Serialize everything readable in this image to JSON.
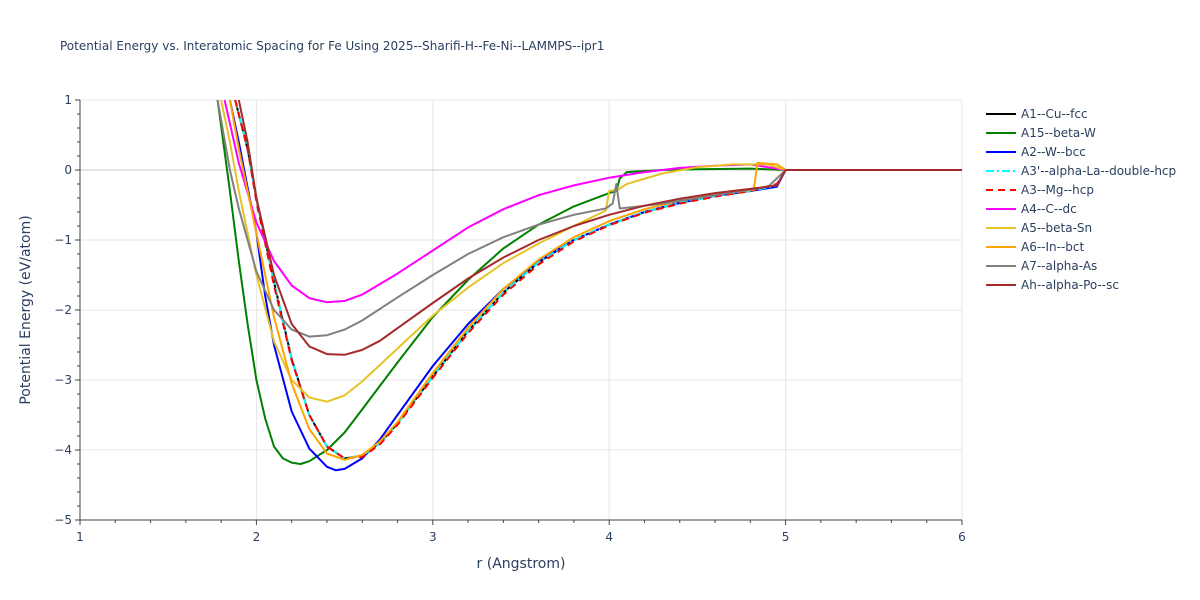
{
  "chart_data": {
    "type": "line",
    "title": "Potential Energy vs. Interatomic Spacing for Fe Using 2025--Sharifi-H--Fe-Ni--LAMMPS--ipr1",
    "xlabel": "r (Angstrom)",
    "ylabel": "Potential Energy (eV/atom)",
    "xlim": [
      1,
      6
    ],
    "ylim": [
      -5,
      1
    ],
    "xticks": [
      1,
      2,
      3,
      4,
      5,
      6
    ],
    "yticks": [
      -5,
      -4,
      -3,
      -2,
      -1,
      0,
      1
    ],
    "xtick_labels": [
      "1",
      "2",
      "3",
      "4",
      "5",
      "6"
    ],
    "ytick_labels": [
      "−5",
      "−4",
      "−3",
      "−2",
      "−1",
      "0",
      "1"
    ],
    "grid": true,
    "legend_position": "right",
    "series": [
      {
        "name": "A1--Cu--fcc",
        "color": "#000000",
        "dash": "solid",
        "x": [
          1.88,
          1.95,
          2.0,
          2.1,
          2.2,
          2.3,
          2.4,
          2.5,
          2.6,
          2.7,
          2.8,
          3.0,
          3.2,
          3.4,
          3.6,
          3.8,
          4.0,
          4.2,
          4.4,
          4.6,
          4.8,
          4.95,
          5.0,
          6.0
        ],
        "y": [
          1.0,
          0.3,
          -0.4,
          -1.6,
          -2.7,
          -3.5,
          -3.95,
          -4.12,
          -4.08,
          -3.9,
          -3.62,
          -2.95,
          -2.3,
          -1.75,
          -1.32,
          -1.0,
          -0.78,
          -0.6,
          -0.47,
          -0.37,
          -0.3,
          -0.22,
          0.0,
          0.0
        ]
      },
      {
        "name": "A15--beta-W",
        "color": "#008000",
        "dash": "solid",
        "x": [
          1.78,
          1.85,
          1.9,
          1.95,
          2.0,
          2.05,
          2.1,
          2.15,
          2.2,
          2.25,
          2.3,
          2.4,
          2.5,
          2.6,
          2.8,
          3.0,
          3.2,
          3.4,
          3.6,
          3.8,
          4.0,
          4.04,
          4.06,
          4.1,
          4.3,
          4.5,
          4.8,
          5.0,
          6.0
        ],
        "y": [
          1.0,
          -0.3,
          -1.3,
          -2.2,
          -3.0,
          -3.55,
          -3.95,
          -4.12,
          -4.18,
          -4.2,
          -4.16,
          -4.0,
          -3.75,
          -3.42,
          -2.75,
          -2.1,
          -1.57,
          -1.12,
          -0.78,
          -0.52,
          -0.33,
          -0.3,
          -0.12,
          -0.03,
          0.0,
          0.01,
          0.02,
          0.0,
          0.0
        ]
      },
      {
        "name": "A2--W--bcc",
        "color": "#0000ff",
        "dash": "solid",
        "x": [
          1.85,
          1.9,
          2.0,
          2.05,
          2.1,
          2.2,
          2.3,
          2.4,
          2.45,
          2.5,
          2.6,
          2.7,
          2.8,
          3.0,
          3.2,
          3.4,
          3.6,
          3.8,
          4.0,
          4.2,
          4.4,
          4.6,
          4.8,
          4.95,
          5.0,
          6.0
        ],
        "y": [
          1.0,
          0.4,
          -0.9,
          -1.8,
          -2.5,
          -3.45,
          -3.98,
          -4.24,
          -4.29,
          -4.27,
          -4.12,
          -3.85,
          -3.5,
          -2.8,
          -2.2,
          -1.7,
          -1.3,
          -1.0,
          -0.78,
          -0.6,
          -0.47,
          -0.37,
          -0.3,
          -0.24,
          0.0,
          0.0
        ]
      },
      {
        "name": "A3'--alpha-La--double-hcp",
        "color": "#00ffff",
        "dash": "dashdot",
        "x": [
          1.88,
          1.95,
          2.0,
          2.1,
          2.2,
          2.3,
          2.4,
          2.5,
          2.6,
          2.7,
          2.8,
          3.0,
          3.2,
          3.4,
          3.6,
          3.8,
          4.0,
          4.2,
          4.4,
          4.6,
          4.8,
          4.95,
          5.0,
          6.0
        ],
        "y": [
          1.0,
          0.3,
          -0.4,
          -1.6,
          -2.7,
          -3.5,
          -3.95,
          -4.12,
          -4.08,
          -3.9,
          -3.62,
          -2.95,
          -2.3,
          -1.75,
          -1.32,
          -1.0,
          -0.78,
          -0.6,
          -0.47,
          -0.37,
          -0.3,
          -0.22,
          0.0,
          0.0
        ]
      },
      {
        "name": "A3--Mg--hcp",
        "color": "#ff0000",
        "dash": "dash",
        "x": [
          1.88,
          1.95,
          2.0,
          2.1,
          2.2,
          2.3,
          2.4,
          2.5,
          2.6,
          2.7,
          2.8,
          3.0,
          3.2,
          3.4,
          3.6,
          3.8,
          4.0,
          4.2,
          4.4,
          4.6,
          4.8,
          4.95,
          5.0,
          6.0
        ],
        "y": [
          1.0,
          0.3,
          -0.45,
          -1.65,
          -2.72,
          -3.5,
          -3.95,
          -4.12,
          -4.1,
          -3.92,
          -3.64,
          -2.97,
          -2.33,
          -1.78,
          -1.35,
          -1.02,
          -0.79,
          -0.61,
          -0.48,
          -0.38,
          -0.3,
          -0.2,
          0.0,
          0.0
        ]
      },
      {
        "name": "A4--C--dc",
        "color": "#ff00ff",
        "dash": "solid",
        "x": [
          1.82,
          1.9,
          2.0,
          2.1,
          2.2,
          2.3,
          2.4,
          2.5,
          2.6,
          2.8,
          3.0,
          3.2,
          3.4,
          3.6,
          3.8,
          4.0,
          4.2,
          4.4,
          4.6,
          4.8,
          5.0,
          6.0
        ],
        "y": [
          1.0,
          0.1,
          -0.75,
          -1.3,
          -1.65,
          -1.83,
          -1.89,
          -1.87,
          -1.78,
          -1.48,
          -1.15,
          -0.82,
          -0.56,
          -0.36,
          -0.22,
          -0.11,
          -0.03,
          0.03,
          0.06,
          0.08,
          0.0,
          0.0
        ]
      },
      {
        "name": "A5--beta-Sn",
        "color": "#e6c229",
        "dash": "solid",
        "x": [
          1.8,
          1.85,
          1.9,
          2.0,
          2.1,
          2.2,
          2.3,
          2.4,
          2.5,
          2.6,
          2.8,
          3.0,
          3.2,
          3.4,
          3.6,
          3.8,
          3.98,
          4.0,
          4.05,
          4.1,
          4.3,
          4.5,
          4.7,
          4.9,
          5.0,
          6.0
        ],
        "y": [
          1.0,
          0.4,
          -0.3,
          -1.5,
          -2.45,
          -3.0,
          -3.25,
          -3.31,
          -3.22,
          -3.02,
          -2.55,
          -2.08,
          -1.68,
          -1.33,
          -1.05,
          -0.8,
          -0.58,
          -0.3,
          -0.28,
          -0.2,
          -0.05,
          0.04,
          0.08,
          0.08,
          0.0,
          0.0
        ]
      },
      {
        "name": "A6--In--bct",
        "color": "#ffa500",
        "dash": "solid",
        "x": [
          1.85,
          1.9,
          2.0,
          2.1,
          2.2,
          2.3,
          2.4,
          2.5,
          2.6,
          2.7,
          2.8,
          3.0,
          3.2,
          3.4,
          3.6,
          3.8,
          4.0,
          4.2,
          4.4,
          4.6,
          4.82,
          4.84,
          4.9,
          4.95,
          5.0,
          6.0
        ],
        "y": [
          1.0,
          0.3,
          -0.9,
          -2.1,
          -3.05,
          -3.7,
          -4.05,
          -4.14,
          -4.07,
          -3.88,
          -3.6,
          -2.9,
          -2.25,
          -1.7,
          -1.28,
          -0.96,
          -0.73,
          -0.56,
          -0.44,
          -0.35,
          -0.28,
          0.1,
          0.09,
          0.08,
          0.0,
          0.0
        ]
      },
      {
        "name": "A7--alpha-As",
        "color": "#808080",
        "dash": "solid",
        "x": [
          1.78,
          1.85,
          1.9,
          2.0,
          2.1,
          2.2,
          2.3,
          2.4,
          2.5,
          2.6,
          2.8,
          3.0,
          3.2,
          3.4,
          3.6,
          3.8,
          3.98,
          4.02,
          4.04,
          4.06,
          4.1,
          4.3,
          4.5,
          4.7,
          4.9,
          5.0,
          6.0
        ],
        "y": [
          1.0,
          0.0,
          -0.55,
          -1.45,
          -2.0,
          -2.28,
          -2.38,
          -2.36,
          -2.28,
          -2.15,
          -1.82,
          -1.5,
          -1.2,
          -0.96,
          -0.78,
          -0.64,
          -0.55,
          -0.48,
          -0.2,
          -0.55,
          -0.54,
          -0.48,
          -0.4,
          -0.32,
          -0.24,
          0.0,
          0.0
        ]
      },
      {
        "name": "Ah--alpha-Po--sc",
        "color": "#a52a2a",
        "dash": "solid",
        "x": [
          1.9,
          1.95,
          2.0,
          2.1,
          2.2,
          2.3,
          2.4,
          2.5,
          2.6,
          2.7,
          2.8,
          3.0,
          3.2,
          3.4,
          3.6,
          3.8,
          4.0,
          4.2,
          4.4,
          4.6,
          4.8,
          4.95,
          5.0,
          6.0
        ],
        "y": [
          1.0,
          0.4,
          -0.4,
          -1.5,
          -2.2,
          -2.52,
          -2.63,
          -2.64,
          -2.57,
          -2.44,
          -2.26,
          -1.9,
          -1.55,
          -1.25,
          -1.0,
          -0.8,
          -0.64,
          -0.51,
          -0.41,
          -0.33,
          -0.27,
          -0.22,
          0.0,
          0.0
        ]
      }
    ]
  }
}
